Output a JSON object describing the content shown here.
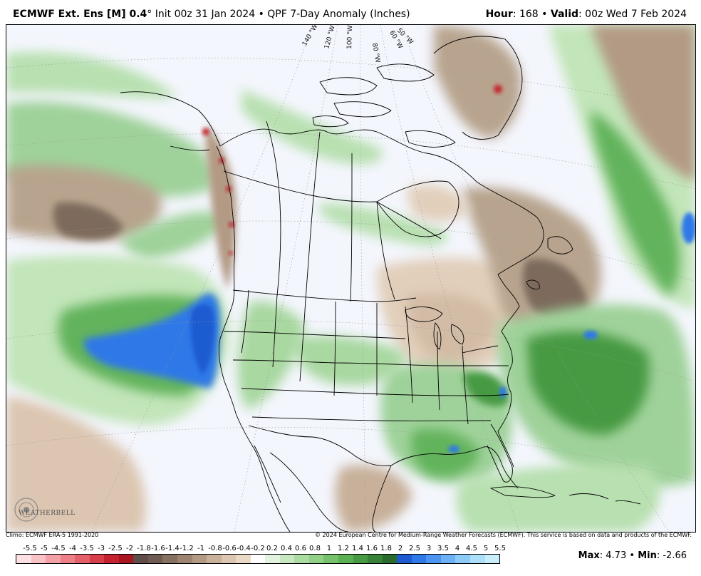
{
  "header": {
    "model": "ECMWF Ext. Ens [M] 0.4",
    "degree": "°",
    "init": "Init 00z 31 Jan 2024",
    "bullet": "•",
    "product": "QPF 7-Day Anomaly (Inches)",
    "hour_label": "Hour",
    "hour_value": ": 168",
    "valid_label": "Valid",
    "valid_value": ": 00z Wed 7 Feb 2024"
  },
  "map": {
    "longitude_labels": [
      "140 °W",
      "120 °W",
      "100 °W",
      "80 °W",
      "60 °W",
      "50 °W"
    ],
    "logo_text": "WEATHERBELL"
  },
  "footer": {
    "climo": "Climo: ECMWF ERA-5 1991-2020",
    "copyright": "© 2024 European Centre for Medium-Range Weather Forecasts (ECMWF). This service is based on data and products of the ECMWF."
  },
  "colorbar": {
    "labels": [
      "-5.5",
      "-5",
      "-4.5",
      "-4",
      "-3.5",
      "-3",
      "-2.5",
      "-2",
      "-1.8",
      "-1.6",
      "-1.4",
      "-1.2",
      "-1",
      "-0.8",
      "-0.6",
      "-0.4",
      "-0.2",
      "0.2",
      "0.4",
      "0.6",
      "0.8",
      "1",
      "1.2",
      "1.4",
      "1.6",
      "1.8",
      "2",
      "2.5",
      "3",
      "3.5",
      "4",
      "4.5",
      "5",
      "5.5"
    ],
    "colors": [
      "#fde0e3",
      "#f9c2c7",
      "#f3a1a8",
      "#ec7f87",
      "#e35f69",
      "#d63e4a",
      "#c5222f",
      "#a8141f",
      "#5e4d49",
      "#6f5b52",
      "#86705f",
      "#9c8470",
      "#b39a84",
      "#c8b09a",
      "#dcc6b1",
      "#ebd9c7",
      "#ffffff",
      "#e3f3e0",
      "#c8e8c1",
      "#addca3",
      "#92cf87",
      "#77c16d",
      "#5cb054",
      "#479a43",
      "#378236",
      "#286b2b",
      "#1f5bd0",
      "#2e78e8",
      "#4b95f0",
      "#6cb1f5",
      "#8ccaf7",
      "#acdff9",
      "#c9eefb"
    ]
  },
  "stats": {
    "max_label": "Max",
    "max_value": ": 4.73",
    "min_label": "Min",
    "min_value": ": -2.66",
    "bullet": "•"
  }
}
